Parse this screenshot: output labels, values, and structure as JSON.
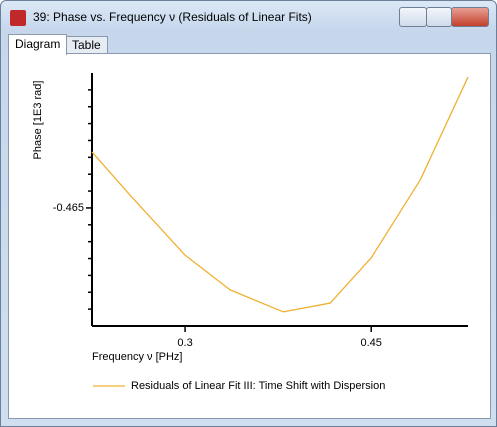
{
  "window_title": "39: Phase vs. Frequency ν (Residuals of Linear Fits)",
  "tabs": [
    "Diagram",
    "Table"
  ],
  "chart_data": {
    "type": "line",
    "xlabel": "Frequency ν [PHz]",
    "ylabel": "Phase [1E3 rad]",
    "x": [
      0.225,
      0.2556,
      0.3,
      0.3363,
      0.379,
      0.417,
      0.45,
      0.4895,
      0.528
    ],
    "series": [
      {
        "name": "Residuals of Linear Fit III: Time Shift with Dispersion",
        "color": "#f0b030",
        "values": [
          -0.4484,
          -0.4612,
          -0.479,
          -0.4893,
          -0.4958,
          -0.4932,
          -0.4798,
          -0.4567,
          -0.4262
        ]
      }
    ],
    "xlim": [
      0.225,
      0.528
    ],
    "xticks": [
      0.3,
      0.45
    ],
    "ylim": [
      -0.5,
      -0.425
    ],
    "yticks": [
      -0.465
    ],
    "yminor_ticks": [
      -0.495,
      -0.49,
      -0.485,
      -0.48,
      -0.475,
      -0.47,
      -0.46,
      -0.455,
      -0.45,
      -0.445,
      -0.44,
      -0.435,
      -0.43
    ],
    "legend": "bottom"
  }
}
